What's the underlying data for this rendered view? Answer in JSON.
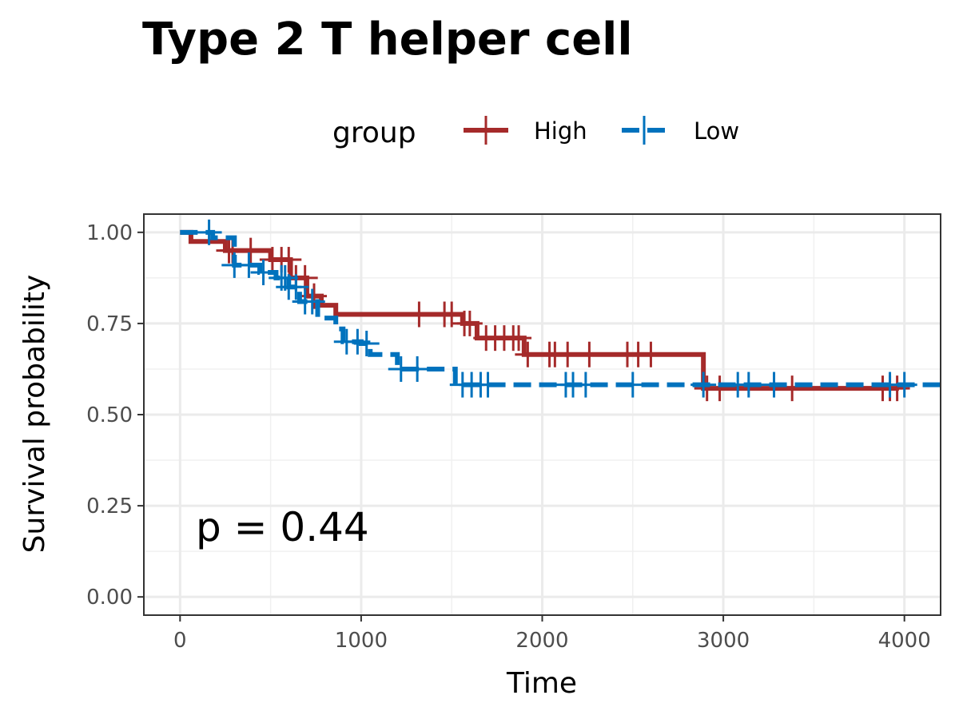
{
  "chart_data": {
    "type": "line",
    "chart_kind": "kaplan-meier survival curve",
    "title": "Type 2 T helper cell",
    "xlabel": "Time",
    "ylabel": "Survival probability",
    "xlim": [
      -200,
      4200
    ],
    "ylim": [
      -0.05,
      1.05
    ],
    "x_ticks": [
      0,
      1000,
      2000,
      3000,
      4000
    ],
    "x_tick_labels": [
      "0",
      "1000",
      "2000",
      "3000",
      "4000"
    ],
    "y_ticks": [
      0,
      0.25,
      0.5,
      0.75,
      1.0
    ],
    "y_tick_labels": [
      "0.00",
      "0.25",
      "0.50",
      "0.75",
      "1.00"
    ],
    "grid": true,
    "legend": {
      "title": "group",
      "position": "top"
    },
    "annotation": "p = 0.44",
    "series": [
      {
        "name": "High",
        "color": "#A52A2A",
        "dash": "solid",
        "steps": [
          [
            0,
            1.0
          ],
          [
            60,
            0.975
          ],
          [
            250,
            0.95
          ],
          [
            500,
            0.925
          ],
          [
            610,
            0.875
          ],
          [
            700,
            0.825
          ],
          [
            780,
            0.8
          ],
          [
            860,
            0.775
          ],
          [
            1560,
            0.75
          ],
          [
            1640,
            0.71
          ],
          [
            1900,
            0.665
          ],
          [
            2890,
            0.572
          ],
          [
            3970,
            0.572
          ]
        ],
        "censor": [
          270,
          290,
          390,
          510,
          560,
          600,
          640,
          690,
          740,
          1320,
          1460,
          1500,
          1570,
          1600,
          1690,
          1740,
          1790,
          1840,
          1870,
          1920,
          2040,
          2070,
          2140,
          2260,
          2470,
          2530,
          2600,
          2910,
          2980,
          3380,
          3880,
          3920,
          3960
        ]
      },
      {
        "name": "Low",
        "color": "#0072BD",
        "dash": "dashed",
        "steps": [
          [
            0,
            1.0
          ],
          [
            180,
            0.985
          ],
          [
            300,
            0.91
          ],
          [
            440,
            0.89
          ],
          [
            530,
            0.875
          ],
          [
            600,
            0.85
          ],
          [
            660,
            0.81
          ],
          [
            760,
            0.765
          ],
          [
            860,
            0.735
          ],
          [
            900,
            0.7
          ],
          [
            1000,
            0.695
          ],
          [
            1050,
            0.665
          ],
          [
            1200,
            0.625
          ],
          [
            1520,
            0.582
          ],
          [
            4200,
            0.582
          ]
        ],
        "censor": [
          160,
          300,
          380,
          460,
          560,
          580,
          600,
          640,
          690,
          730,
          920,
          980,
          1030,
          1220,
          1310,
          1560,
          1610,
          1660,
          1700,
          2130,
          2170,
          2240,
          2500,
          2890,
          3080,
          3140,
          3280,
          3920,
          4000
        ]
      }
    ]
  }
}
